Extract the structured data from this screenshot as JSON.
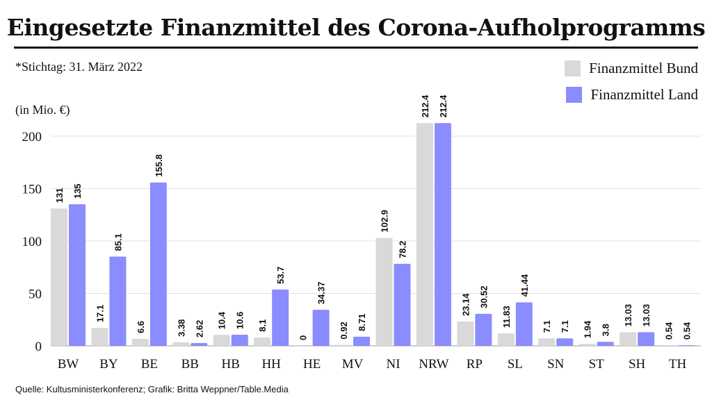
{
  "chart_data": {
    "type": "bar",
    "title": "Eingesetzte Finanzmittel des Corona-Aufholprogramms",
    "subtitle": "*Stichtag: 31. März 2022",
    "ylabel": "(in Mio. €)",
    "xlabel": "",
    "ylim": [
      0,
      200
    ],
    "yticks": [
      0,
      50,
      100,
      150,
      200
    ],
    "grid": true,
    "legend_position": "top-right",
    "categories": [
      "BW",
      "BY",
      "BE",
      "BB",
      "HB",
      "HH",
      "HE",
      "MV",
      "NI",
      "NRW",
      "RP",
      "SL",
      "SN",
      "ST",
      "SH",
      "TH"
    ],
    "series": [
      {
        "name": "Finanzmittel Bund",
        "color": "#d9d9d9",
        "values": [
          131,
          17.1,
          6.6,
          3.38,
          10.4,
          8.1,
          0,
          0.92,
          102.9,
          212.4,
          23.14,
          11.83,
          7.1,
          1.94,
          13.03,
          0.54
        ]
      },
      {
        "name": "Finanzmittel Land",
        "color": "#8a8cff",
        "values": [
          135,
          85.1,
          155.8,
          2.62,
          10.6,
          53.7,
          34.37,
          8.71,
          78.2,
          212.4,
          30.52,
          41.44,
          7.1,
          3.8,
          13.03,
          0.54
        ]
      }
    ],
    "source": "Quelle: Kultusministerkonferenz; Grafik: Britta Weppner/Table.Media"
  }
}
